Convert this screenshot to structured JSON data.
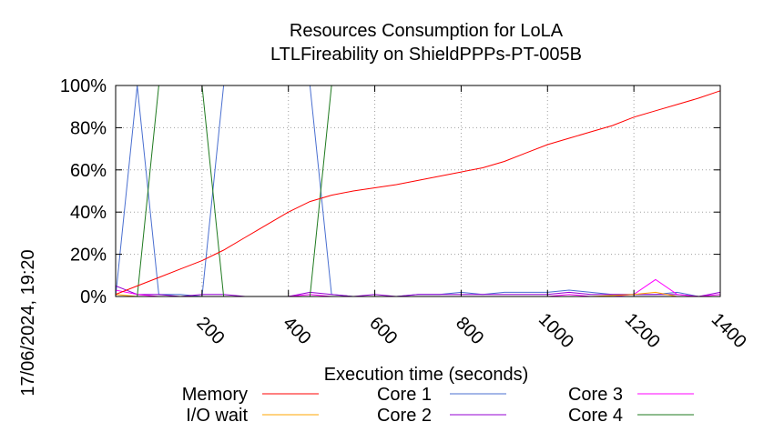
{
  "chart_data": {
    "type": "line",
    "title": "Resources Consumption for LoLA",
    "subtitle": "LTLFireability on ShieldPPPs-PT-005B",
    "xlabel": "Execution time (seconds)",
    "ylabel": "",
    "side_label": "17/06/2024, 19:20",
    "xlim": [
      0,
      1400
    ],
    "ylim": [
      0,
      100
    ],
    "x_ticks": [
      200,
      400,
      600,
      800,
      1000,
      1200,
      1400
    ],
    "x_tick_labels": [
      "200",
      "400",
      "600",
      "800",
      "1000",
      "1200",
      "1400"
    ],
    "y_ticks": [
      0,
      20,
      40,
      60,
      80,
      100
    ],
    "y_tick_labels": [
      "0%",
      "20%",
      "40%",
      "60%",
      "80%",
      "100%"
    ],
    "grid": true,
    "legend_position": "bottom",
    "series": [
      {
        "name": "Memory",
        "color": "#ff0000",
        "x": [
          0,
          50,
          100,
          150,
          200,
          250,
          300,
          350,
          400,
          450,
          500,
          550,
          600,
          650,
          700,
          750,
          800,
          850,
          900,
          950,
          1000,
          1050,
          1100,
          1150,
          1200,
          1250,
          1300,
          1350,
          1400
        ],
        "y": [
          1,
          5,
          9,
          13,
          17,
          22,
          28,
          34,
          40,
          45,
          48,
          50,
          51.5,
          53,
          55,
          57,
          59,
          61,
          64,
          68,
          72,
          75,
          78,
          81,
          85,
          88,
          91,
          94,
          97.5
        ]
      },
      {
        "name": "I/O wait",
        "color": "#ffa500",
        "x": [
          0,
          50,
          100,
          200,
          300,
          400,
          500,
          600,
          700,
          800,
          900,
          1000,
          1100,
          1200,
          1250,
          1300,
          1350,
          1400
        ],
        "y": [
          1,
          0,
          0,
          0,
          0,
          0,
          0,
          0,
          0,
          0,
          0,
          0,
          0,
          1,
          2,
          0,
          0,
          0
        ]
      },
      {
        "name": "Core 1",
        "color": "#4a6fd0",
        "x": [
          0,
          50,
          100,
          150,
          200,
          250,
          300,
          350,
          400,
          450,
          500,
          550,
          600,
          650,
          700,
          750,
          800,
          850,
          900,
          950,
          1000,
          1050,
          1100,
          1150,
          1200,
          1250,
          1300,
          1350,
          1400
        ],
        "y": [
          0,
          100,
          1,
          1,
          0,
          100,
          100,
          100,
          100,
          100,
          1,
          0,
          0,
          0,
          1,
          1,
          2,
          1,
          2,
          2,
          2,
          3,
          2,
          1,
          1,
          1,
          2,
          0,
          0
        ]
      },
      {
        "name": "Core 2",
        "color": "#9400d3",
        "x": [
          0,
          50,
          100,
          150,
          200,
          250,
          300,
          350,
          400,
          450,
          500,
          550,
          600,
          650,
          700,
          750,
          800,
          850,
          900,
          950,
          1000,
          1050,
          1100,
          1150,
          1200,
          1250,
          1300,
          1350,
          1400
        ],
        "y": [
          5,
          1,
          1,
          0,
          1,
          1,
          0,
          0,
          0,
          2,
          1,
          0,
          1,
          0,
          1,
          1,
          1,
          1,
          1,
          1,
          1,
          2,
          1,
          1,
          1,
          1,
          1,
          0,
          2
        ]
      },
      {
        "name": "Core 3",
        "color": "#ff00ff",
        "x": [
          0,
          50,
          100,
          200,
          300,
          400,
          450,
          500,
          600,
          700,
          800,
          900,
          1000,
          1050,
          1100,
          1150,
          1200,
          1250,
          1300,
          1350,
          1400
        ],
        "y": [
          3,
          1,
          0,
          0,
          0,
          0,
          1,
          0,
          0,
          0,
          0,
          0,
          0,
          1,
          0,
          0,
          1,
          8,
          1,
          0,
          1
        ]
      },
      {
        "name": "Core 4",
        "color": "#1f7a1f",
        "x": [
          0,
          50,
          100,
          150,
          200,
          250,
          300,
          350,
          400,
          450,
          500,
          550,
          600,
          700,
          800,
          900,
          1000,
          1100,
          1200,
          1300,
          1400
        ],
        "y": [
          0,
          0,
          100,
          100,
          100,
          0,
          0,
          0,
          0,
          0,
          100,
          100,
          100,
          100,
          100,
          100,
          100,
          100,
          100,
          100,
          100
        ]
      }
    ]
  }
}
